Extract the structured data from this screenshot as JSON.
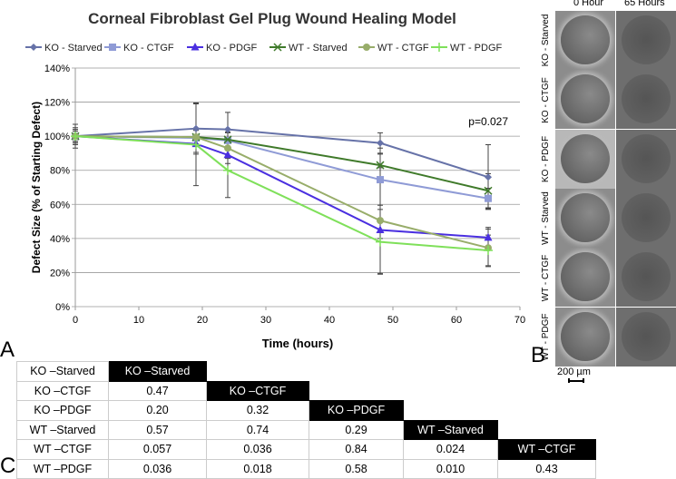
{
  "chart_data": {
    "type": "line",
    "title": "Corneal Fibroblast Gel Plug Wound Healing Model",
    "xlabel": "Time (hours)",
    "ylabel": "Defect Size (% of Starting Defect)",
    "xlim": [
      0,
      70
    ],
    "ylim": [
      0,
      140
    ],
    "xticks": [
      0,
      10,
      20,
      30,
      40,
      50,
      60,
      70
    ],
    "yticks": [
      "0%",
      "20%",
      "40%",
      "60%",
      "80%",
      "100%",
      "120%",
      "140%"
    ],
    "grid": true,
    "legend": "top",
    "annotation": "p=0.027",
    "x": [
      0,
      19,
      24,
      48,
      65
    ],
    "series": [
      {
        "name": "KO - Starved",
        "color": "#6672a8",
        "marker": "diamond",
        "values": [
          100,
          104.5,
          104,
          96,
          76
        ],
        "err": [
          7,
          15,
          10,
          6,
          19
        ]
      },
      {
        "name": "KO - CTGF",
        "color": "#8f9bd6",
        "marker": "square",
        "values": [
          100,
          99,
          97.5,
          74.5,
          63.5
        ],
        "err": [
          5,
          5,
          5,
          15,
          6
        ]
      },
      {
        "name": "KO - PDGF",
        "color": "#4a2fe0",
        "marker": "triangle",
        "values": [
          100,
          95.5,
          89,
          45,
          40.5
        ],
        "err": [
          4,
          5,
          5,
          5,
          6
        ]
      },
      {
        "name": "WT - Starved",
        "color": "#3f7a2a",
        "marker": "x",
        "values": [
          100,
          99.5,
          98,
          83,
          68
        ],
        "err": [
          4,
          4,
          4,
          10,
          10
        ]
      },
      {
        "name": "WT - CTGF",
        "color": "#98ad6a",
        "marker": "circle",
        "values": [
          100,
          99.5,
          93,
          50.5,
          34.5
        ],
        "err": [
          3,
          4,
          6,
          31,
          11
        ]
      },
      {
        "name": "WT - PDGF",
        "color": "#7fe05a",
        "marker": "plus",
        "values": [
          100,
          95,
          80,
          38,
          33
        ],
        "err": [
          3,
          24,
          16,
          19,
          9
        ]
      }
    ]
  },
  "panels": {
    "a": "A",
    "b": "B",
    "c": "C"
  },
  "images": {
    "col_headers": [
      "0 Hour",
      "65 Hours"
    ],
    "row_labels": [
      "KO - Starved",
      "KO - CTGF",
      "KO - PDGF",
      "WT - Starved",
      "WT - CTGF",
      "WT - PDGF"
    ],
    "scale_bar": "200 µm"
  },
  "pvalue_table": {
    "rows": [
      {
        "label": "KO –Starved",
        "cells": [
          "KO –Starved"
        ]
      },
      {
        "label": "KO –CTGF",
        "cells": [
          "0.47",
          "KO –CTGF"
        ]
      },
      {
        "label": "KO –PDGF",
        "cells": [
          "0.20",
          "0.32",
          "KO –PDGF"
        ]
      },
      {
        "label": "WT –Starved",
        "cells": [
          "0.57",
          "0.74",
          "0.29",
          "WT –Starved"
        ]
      },
      {
        "label": "WT –CTGF",
        "cells": [
          "0.057",
          "0.036",
          "0.84",
          "0.024",
          "WT –CTGF"
        ]
      },
      {
        "label": "WT –PDGF",
        "cells": [
          "0.036",
          "0.018",
          "0.58",
          "0.010",
          "0.43"
        ]
      }
    ]
  }
}
